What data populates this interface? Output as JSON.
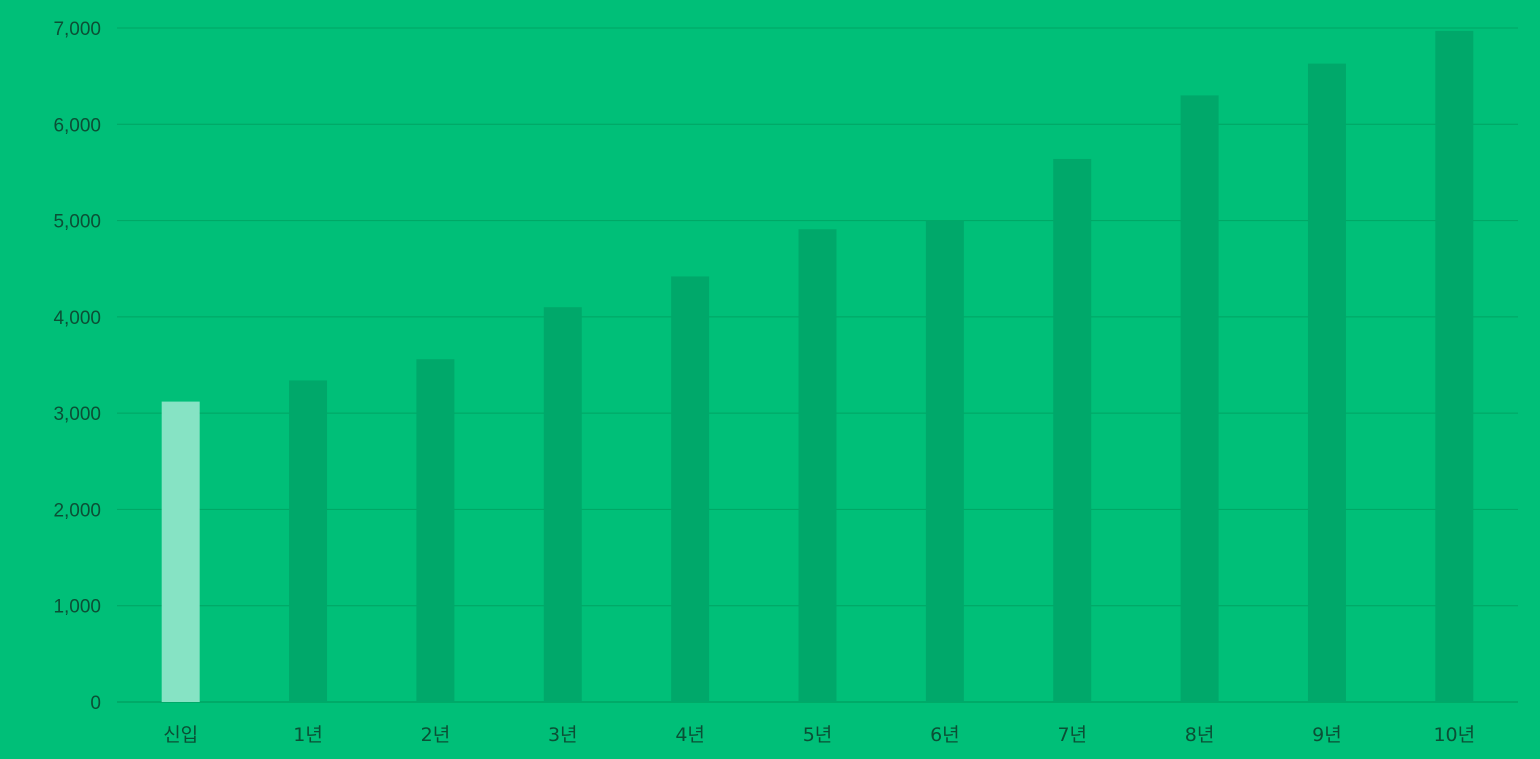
{
  "chart_data": {
    "type": "bar",
    "categories": [
      "신입",
      "1년",
      "2년",
      "3년",
      "4년",
      "5년",
      "6년",
      "7년",
      "8년",
      "9년",
      "10년"
    ],
    "values": [
      3120,
      3340,
      3560,
      4100,
      4420,
      4910,
      5000,
      5640,
      6300,
      6630,
      6970
    ],
    "highlight_index": 0,
    "title": "",
    "xlabel": "",
    "ylabel": "",
    "ylim": [
      0,
      7000
    ],
    "yticks": [
      {
        "value": 0,
        "label": "0"
      },
      {
        "value": 1000,
        "label": "1,000"
      },
      {
        "value": 2000,
        "label": "2,000"
      },
      {
        "value": 3000,
        "label": "3,000"
      },
      {
        "value": 4000,
        "label": "4,000"
      },
      {
        "value": 5000,
        "label": "5,000"
      },
      {
        "value": 6000,
        "label": "6,000"
      },
      {
        "value": 7000,
        "label": "7,000"
      }
    ],
    "grid": true,
    "legend": "none",
    "colors": {
      "background": "#00bf78",
      "bar": "#00a86a",
      "bar_highlight": "#86e3c4",
      "grid": "#00a463",
      "text": "#0b4f35"
    }
  }
}
